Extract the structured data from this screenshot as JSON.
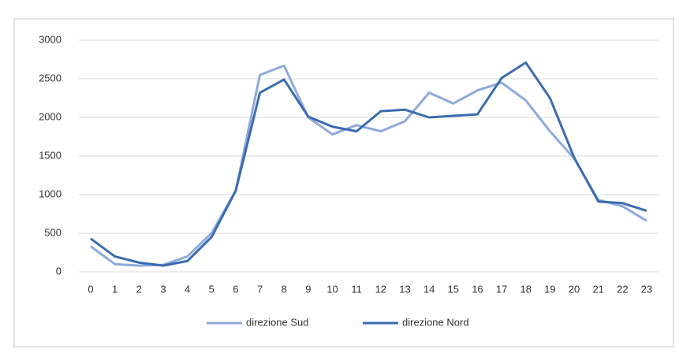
{
  "chart_data": {
    "type": "line",
    "categories": [
      "0",
      "1",
      "2",
      "3",
      "4",
      "5",
      "6",
      "7",
      "8",
      "9",
      "10",
      "11",
      "12",
      "13",
      "14",
      "15",
      "16",
      "17",
      "18",
      "19",
      "20",
      "21",
      "22",
      "23"
    ],
    "series": [
      {
        "name": "direzione Sud",
        "color": "#8eaadb",
        "values": [
          330,
          100,
          80,
          90,
          200,
          500,
          1050,
          2550,
          2670,
          2000,
          1780,
          1900,
          1820,
          1950,
          2320,
          2180,
          2350,
          2450,
          2220,
          1820,
          1470,
          930,
          850,
          660
        ]
      },
      {
        "name": "direzione Nord",
        "color": "#3b6cb0",
        "values": [
          430,
          200,
          120,
          80,
          140,
          450,
          1050,
          2320,
          2490,
          2010,
          1880,
          1820,
          2080,
          2100,
          2000,
          2020,
          2040,
          2510,
          2710,
          2250,
          1480,
          910,
          890,
          790
        ]
      }
    ],
    "ylim": [
      0,
      3000
    ],
    "yticks": [
      0,
      500,
      1000,
      1500,
      2000,
      2500,
      3000
    ],
    "grid": true,
    "legend": "bottom"
  }
}
